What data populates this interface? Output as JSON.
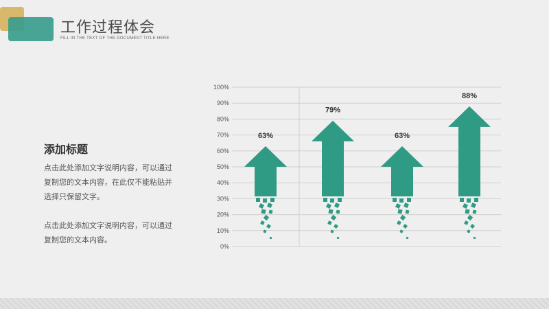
{
  "header": {
    "title": "工作过程体会",
    "subtitle": "FILL IN THE TEXT OF THE DOCUMENT TITLE HERE"
  },
  "sidebar": {
    "heading": "添加标题",
    "para1": "点击此处添加文字说明内容，可以通过复制您的文本内容，在此仅不能粘贴并选择只保留文字。",
    "para2": "点击此处添加文字说明内容，可以通过复制您的文本内容。"
  },
  "colors": {
    "accent": "#2f9b84",
    "gold": "#d8b86a",
    "grid": "#cfcfcf"
  },
  "chart_data": {
    "type": "bar",
    "categories": [
      "",
      "",
      "",
      ""
    ],
    "values": [
      63,
      79,
      63,
      88
    ],
    "value_labels": [
      "63%",
      "79%",
      "63%",
      "88%"
    ],
    "yticks": [
      "0%",
      "10%",
      "20%",
      "30%",
      "40%",
      "50%",
      "60%",
      "70%",
      "80%",
      "90%",
      "100%"
    ],
    "ylim": [
      0,
      100
    ],
    "grid": true,
    "legend": "none",
    "title": "",
    "xlabel": "",
    "ylabel": ""
  }
}
